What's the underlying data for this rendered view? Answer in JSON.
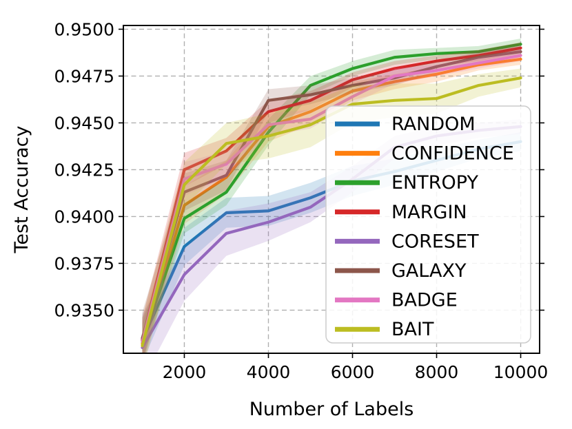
{
  "figure": {
    "background": "#ffffff",
    "grid_color": "#b0b0b0",
    "spine_color": "#000000",
    "legend_border_color": "#cccccc",
    "legend_background": "#ffffff"
  },
  "chart_data": {
    "type": "line",
    "title": "",
    "xlabel": "Number of Labels",
    "ylabel": "Test Accuracy",
    "x": [
      1000,
      2000,
      3000,
      4000,
      5000,
      6000,
      7000,
      8000,
      9000,
      10000
    ],
    "xlim": [
      550,
      10450
    ],
    "ylim": [
      0.9327,
      0.9502
    ],
    "xticks": [
      2000,
      4000,
      6000,
      8000,
      10000
    ],
    "xtick_labels": [
      "2000",
      "4000",
      "6000",
      "8000",
      "10000"
    ],
    "yticks": [
      0.935,
      0.9375,
      0.94,
      0.9425,
      0.945,
      0.9475,
      0.95
    ],
    "ytick_labels": [
      "0.9350",
      "0.9375",
      "0.9400",
      "0.9425",
      "0.9450",
      "0.9475",
      "0.9500"
    ],
    "grid": true,
    "grid_style": "dashed",
    "legend_position": "inside lower right",
    "series": [
      {
        "name": "RANDOM",
        "color": "#1f77b4",
        "values": [
          0.9334,
          0.9384,
          0.9402,
          0.9403,
          0.941,
          0.9419,
          0.9424,
          0.943,
          0.9436,
          0.944
        ],
        "band": [
          0.0012,
          0.001,
          0.0008,
          0.0008,
          0.0008,
          0.0008,
          0.0007,
          0.0006,
          0.0005,
          0.0005
        ]
      },
      {
        "name": "CONFIDENCE",
        "color": "#ff7f0e",
        "values": [
          0.9332,
          0.9406,
          0.9421,
          0.9448,
          0.9456,
          0.9467,
          0.9472,
          0.9476,
          0.9481,
          0.9484
        ],
        "band": [
          0.0012,
          0.001,
          0.0009,
          0.0008,
          0.0007,
          0.0005,
          0.0004,
          0.0004,
          0.0003,
          0.0003
        ]
      },
      {
        "name": "ENTROPY",
        "color": "#2ca02c",
        "values": [
          0.9333,
          0.9399,
          0.9413,
          0.9445,
          0.947,
          0.9479,
          0.9485,
          0.9487,
          0.9488,
          0.9492
        ],
        "band": [
          0.001,
          0.0008,
          0.0007,
          0.0007,
          0.0005,
          0.0004,
          0.0004,
          0.0003,
          0.0003,
          0.0003
        ]
      },
      {
        "name": "MARGIN",
        "color": "#d62728",
        "values": [
          0.9334,
          0.9425,
          0.9435,
          0.9456,
          0.9462,
          0.9473,
          0.9479,
          0.9483,
          0.9486,
          0.949
        ],
        "band": [
          0.0012,
          0.0009,
          0.0007,
          0.0006,
          0.0005,
          0.0004,
          0.0004,
          0.0003,
          0.0003,
          0.0003
        ]
      },
      {
        "name": "CORESET",
        "color": "#9467bd",
        "values": [
          0.933,
          0.9369,
          0.9391,
          0.9397,
          0.9405,
          0.942,
          0.9437,
          0.9443,
          0.9446,
          0.9448
        ],
        "band": [
          0.0018,
          0.0014,
          0.0012,
          0.001,
          0.0008,
          0.0007,
          0.0006,
          0.0005,
          0.0004,
          0.0004
        ]
      },
      {
        "name": "GALAXY",
        "color": "#8c564b",
        "values": [
          0.9335,
          0.9413,
          0.9422,
          0.9462,
          0.9465,
          0.947,
          0.9474,
          0.948,
          0.9485,
          0.9488
        ],
        "band": [
          0.0014,
          0.001,
          0.0008,
          0.0006,
          0.0005,
          0.0004,
          0.0004,
          0.0003,
          0.0003,
          0.0003
        ]
      },
      {
        "name": "BADGE",
        "color": "#e377c2",
        "values": [
          0.9333,
          0.942,
          0.9428,
          0.9449,
          0.9452,
          0.9464,
          0.9475,
          0.9478,
          0.9482,
          0.9486
        ],
        "band": [
          0.0012,
          0.0009,
          0.0007,
          0.0006,
          0.0005,
          0.0004,
          0.0004,
          0.0003,
          0.0003,
          0.0003
        ]
      },
      {
        "name": "BAIT",
        "color": "#bcbd22",
        "values": [
          0.9331,
          0.9417,
          0.9439,
          0.9443,
          0.9449,
          0.946,
          0.9462,
          0.9463,
          0.947,
          0.9474
        ],
        "band": [
          0.0015,
          0.0012,
          0.0011,
          0.0012,
          0.0012,
          0.001,
          0.0009,
          0.0008,
          0.0006,
          0.0005
        ]
      }
    ]
  }
}
